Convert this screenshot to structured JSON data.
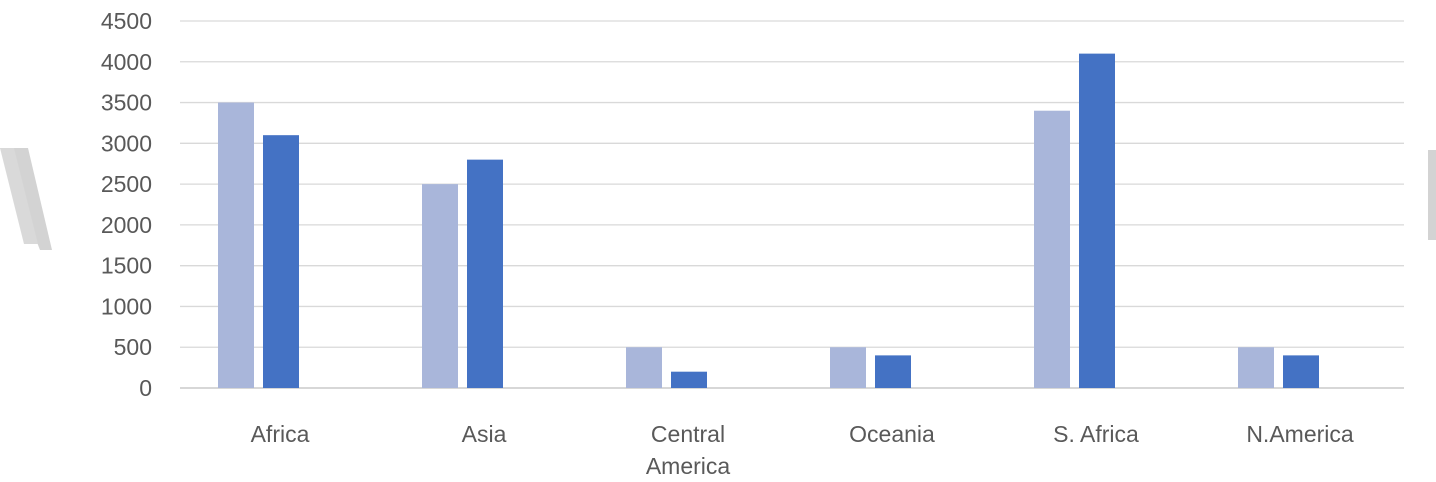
{
  "chart_data": {
    "type": "bar",
    "categories": [
      "Africa",
      "Asia",
      "Central America",
      "Oceania",
      "S. Africa",
      "N.America"
    ],
    "series": [
      {
        "values": [
          3500,
          2500,
          500,
          500,
          3400,
          500
        ],
        "color": "#a9b6da"
      },
      {
        "values": [
          3100,
          2800,
          200,
          400,
          4100,
          400
        ],
        "color": "#4472c4"
      }
    ],
    "ylim": [
      0,
      4500
    ],
    "yticks": [
      0,
      500,
      1000,
      1500,
      2000,
      2500,
      3000,
      3500,
      4000,
      4500
    ],
    "grid": true,
    "legend": "none",
    "title": "",
    "xlabel": "",
    "ylabel": ""
  }
}
